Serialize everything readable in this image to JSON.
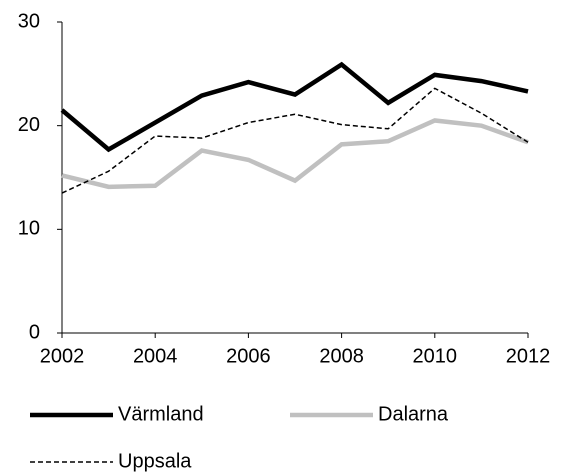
{
  "chart_data": {
    "type": "line",
    "x": [
      2002,
      2003,
      2004,
      2005,
      2006,
      2007,
      2008,
      2009,
      2010,
      2011,
      2012
    ],
    "series": [
      {
        "name": "Värmland",
        "color": "#000000",
        "values": [
          21.5,
          17.7,
          20.3,
          22.9,
          24.2,
          23.0,
          25.9,
          22.2,
          24.9,
          24.3,
          23.3
        ]
      },
      {
        "name": "Dalarna",
        "color": "#c0c0c0",
        "values": [
          15.2,
          14.1,
          14.2,
          17.6,
          16.7,
          14.7,
          18.2,
          18.5,
          20.5,
          20.0,
          18.4
        ]
      },
      {
        "name": "Uppsala",
        "color": "#000000",
        "dashed": true,
        "values": [
          13.5,
          15.6,
          19.0,
          18.8,
          20.3,
          21.1,
          20.1,
          19.7,
          23.6,
          21.2,
          18.4
        ]
      }
    ],
    "xlim": [
      2002,
      2012
    ],
    "xticks": [
      2002,
      2004,
      2006,
      2008,
      2010,
      2012
    ],
    "ylim": [
      0,
      30
    ],
    "yticks": [
      0,
      10,
      20,
      30
    ],
    "grid": false
  }
}
